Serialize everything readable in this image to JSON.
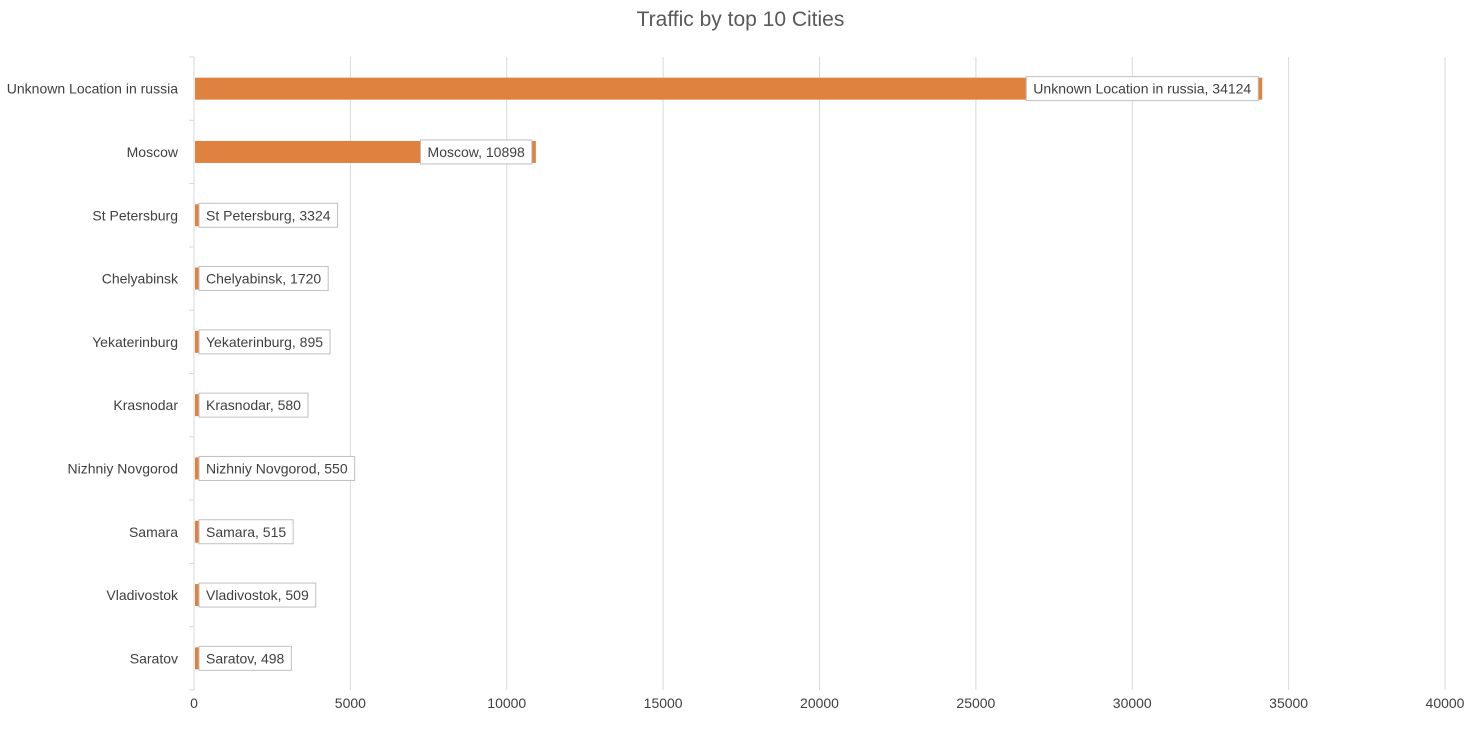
{
  "chart_data": {
    "type": "bar",
    "orientation": "horizontal",
    "title": "Traffic by top 10 Cities",
    "categories": [
      "Unknown Location in russia",
      "Moscow",
      "St Petersburg",
      "Chelyabinsk",
      "Yekaterinburg",
      "Krasnodar",
      "Nizhniy Novgorod",
      "Samara",
      "Vladivostok",
      "Saratov"
    ],
    "values": [
      34124,
      10898,
      3324,
      1720,
      895,
      580,
      550,
      515,
      509,
      498
    ],
    "data_labels": [
      "Unknown Location in russia, 34124",
      "Moscow, 10898",
      "St Petersburg, 3324",
      "Chelyabinsk, 1720",
      "Yekaterinburg, 895",
      "Krasnodar, 580",
      "Nizhniy Novgorod, 550",
      "Samara, 515",
      "Vladivostok, 509",
      "Saratov, 498"
    ],
    "xlim": [
      0,
      40000
    ],
    "x_ticks": [
      0,
      5000,
      10000,
      15000,
      20000,
      25000,
      30000,
      35000,
      40000
    ],
    "x_tick_labels": [
      "0",
      "5000",
      "10000",
      "15000",
      "20000",
      "25000",
      "30000",
      "35000",
      "40000"
    ],
    "xlabel": "",
    "ylabel": "",
    "grid": true,
    "legend": "none",
    "bar_color": "#E0823F",
    "grid_color": "#D9D9D9"
  }
}
